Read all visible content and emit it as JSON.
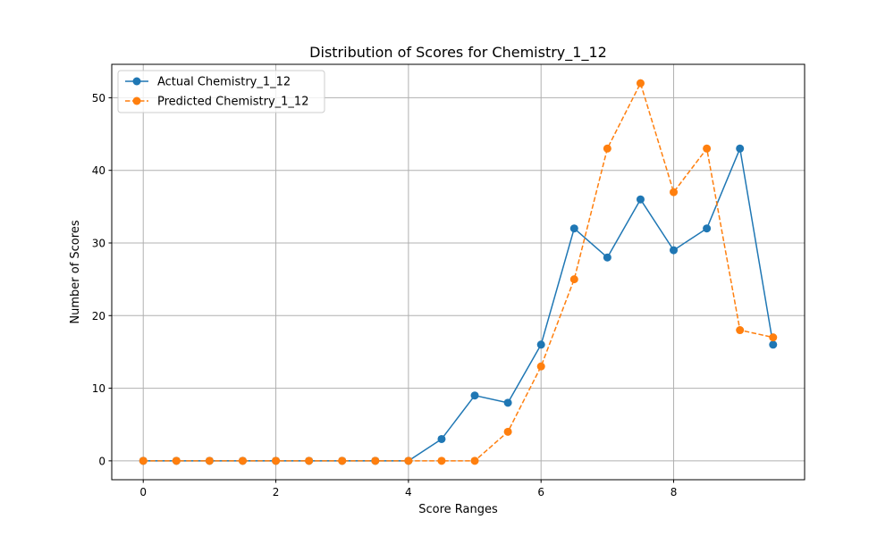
{
  "chart_data": {
    "type": "line",
    "title": "Distribution of Scores for Chemistry_1_12",
    "xlabel": "Score Ranges",
    "ylabel": "Number of Scores",
    "x": [
      0,
      0.5,
      1,
      1.5,
      2,
      2.5,
      3,
      3.5,
      4,
      4.5,
      5,
      5.5,
      6,
      6.5,
      7,
      7.5,
      8,
      8.5,
      9,
      9.5
    ],
    "xlim": [
      -0.475,
      9.975
    ],
    "ylim": [
      -2.6,
      54.6
    ],
    "xticks": [
      0,
      2,
      4,
      6,
      8
    ],
    "yticks": [
      0,
      10,
      20,
      30,
      40,
      50
    ],
    "grid": true,
    "legend_position": "top-left",
    "series": [
      {
        "name": "Actual Chemistry_1_12",
        "color": "#1f77b4",
        "linestyle": "solid",
        "marker": "circle",
        "values": [
          0,
          0,
          0,
          0,
          0,
          0,
          0,
          0,
          0,
          3,
          9,
          8,
          16,
          32,
          28,
          36,
          29,
          32,
          43,
          16
        ]
      },
      {
        "name": "Predicted Chemistry_1_12",
        "color": "#ff7f0e",
        "linestyle": "dashed",
        "marker": "circle",
        "values": [
          0,
          0,
          0,
          0,
          0,
          0,
          0,
          0,
          0,
          0,
          0,
          4,
          13,
          25,
          43,
          52,
          37,
          43,
          18,
          17
        ]
      }
    ]
  }
}
